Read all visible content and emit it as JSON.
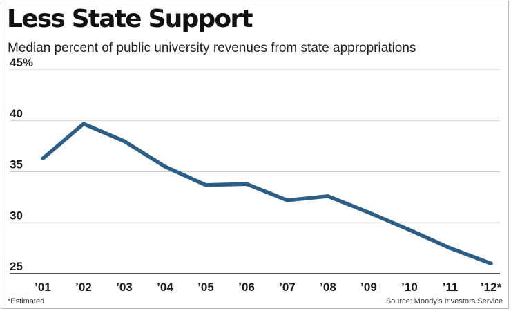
{
  "title": "Less State Support",
  "subtitle": "Median percent of public university revenues from state appropriations",
  "footnote": "*Estimated",
  "source": "Source: Moody’s Investors Service",
  "colors": {
    "line": "#2b5d86",
    "grid": "#cfcfcf",
    "axis": "#1a1a1a",
    "text": "#111111"
  },
  "chart_data": {
    "type": "line",
    "title": "Less State Support",
    "subtitle": "Median percent of public university revenues from state appropriations",
    "xlabel": "",
    "ylabel": "",
    "categories": [
      "’01",
      "’02",
      "’03",
      "’04",
      "’05",
      "’06",
      "’07",
      "’08",
      "’09",
      "’10",
      "’11",
      "’12*"
    ],
    "series": [
      {
        "name": "Median percent of revenues from state appropriations",
        "values": [
          36.3,
          39.7,
          38.0,
          35.5,
          33.7,
          33.8,
          32.2,
          32.6,
          31.0,
          29.3,
          27.5,
          26.0
        ]
      }
    ],
    "yticks": [
      25,
      30,
      35,
      40,
      45
    ],
    "ytick_labels": [
      "25",
      "30",
      "35",
      "40",
      "45%"
    ],
    "ylim": [
      25,
      45
    ],
    "grid": true,
    "legend": "none",
    "annotations": [
      "*Estimated",
      "Source: Moody’s Investors Service"
    ]
  }
}
